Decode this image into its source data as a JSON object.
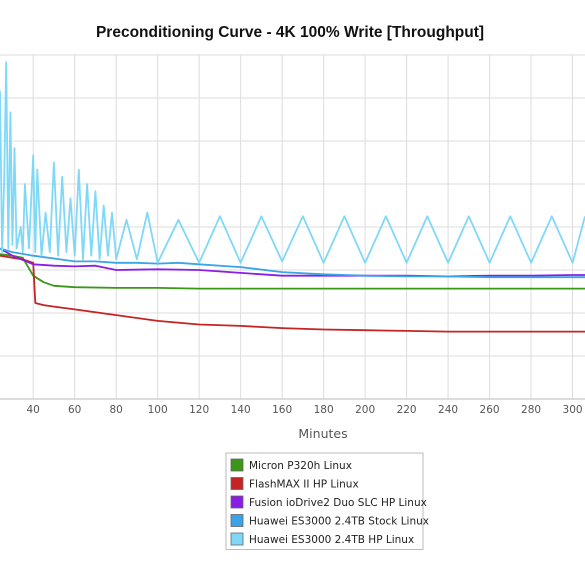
{
  "chart_data": {
    "type": "line",
    "title": "Preconditioning Curve - 4K 100% Write [Throughput]",
    "xlabel": "Minutes",
    "ylabel": "",
    "xlim": [
      24,
      306
    ],
    "ylim": [
      0,
      480
    ],
    "x_ticks": [
      40,
      60,
      80,
      100,
      120,
      140,
      160,
      180,
      200,
      220,
      240,
      260,
      280,
      300
    ],
    "grid": true,
    "legend_position": "bottom-center",
    "series": [
      {
        "name": "Micron P320h Linux",
        "color": "#3c9617",
        "x": [
          24,
          30,
          35,
          40,
          45,
          50,
          60,
          80,
          100,
          120,
          140,
          160,
          180,
          200,
          220,
          240,
          260,
          280,
          300,
          306
        ],
        "y": [
          202,
          200,
          197,
          172,
          163,
          158,
          156,
          155,
          155,
          154,
          154,
          154,
          154,
          154,
          154,
          154,
          154,
          154,
          154,
          154
        ]
      },
      {
        "name": "FlashMAX II HP Linux",
        "color": "#c52424",
        "x": [
          24,
          30,
          35,
          40,
          41,
          45,
          50,
          60,
          80,
          100,
          120,
          140,
          160,
          180,
          200,
          220,
          240,
          260,
          280,
          300,
          306
        ],
        "y": [
          200,
          197,
          195,
          190,
          134,
          131,
          129,
          125,
          117,
          109,
          104,
          102,
          99,
          97,
          96,
          95,
          94,
          94,
          94,
          94,
          94
        ]
      },
      {
        "name": "Fusion ioDrive2 Duo SLC HP Linux",
        "color": "#8a1ee6",
        "x": [
          24,
          30,
          40,
          50,
          60,
          70,
          80,
          100,
          120,
          140,
          160,
          180,
          200,
          220,
          240,
          260,
          280,
          300,
          306
        ],
        "y": [
          210,
          200,
          188,
          186,
          185,
          186,
          180,
          181,
          180,
          176,
          172,
          172,
          172,
          172,
          171,
          172,
          172,
          173,
          173
        ]
      },
      {
        "name": "Huawei ES3000 2.4TB Stock Linux",
        "color": "#3aa4e6",
        "x": [
          24,
          30,
          40,
          50,
          60,
          70,
          80,
          90,
          100,
          110,
          120,
          140,
          160,
          180,
          200,
          220,
          240,
          260,
          280,
          300,
          306
        ],
        "y": [
          210,
          205,
          200,
          196,
          192,
          192,
          190,
          190,
          189,
          190,
          188,
          184,
          177,
          174,
          172,
          171,
          171,
          170,
          170,
          170,
          170
        ]
      },
      {
        "name": "Huawei ES3000 2.4TB HP Linux",
        "color": "#7fd8f8",
        "x": [
          24,
          25,
          26,
          27,
          28,
          29,
          30,
          31,
          32,
          34,
          35,
          36,
          38,
          40,
          41,
          42,
          44,
          46,
          48,
          50,
          52,
          54,
          56,
          58,
          60,
          62,
          64,
          66,
          68,
          70,
          72,
          74,
          76,
          78,
          80,
          85,
          90,
          95,
          100,
          110,
          120,
          130,
          140,
          150,
          160,
          170,
          180,
          190,
          200,
          210,
          220,
          230,
          240,
          250,
          260,
          270,
          280,
          290,
          300,
          306
        ],
        "y": [
          430,
          205,
          300,
          470,
          210,
          400,
          215,
          350,
          210,
          240,
          205,
          300,
          210,
          340,
          205,
          320,
          200,
          260,
          205,
          330,
          200,
          310,
          205,
          280,
          200,
          320,
          195,
          300,
          200,
          290,
          195,
          270,
          200,
          260,
          195,
          250,
          195,
          260,
          190,
          250,
          190,
          255,
          190,
          255,
          192,
          255,
          190,
          255,
          190,
          255,
          190,
          255,
          190,
          255,
          190,
          255,
          190,
          255,
          190,
          255
        ]
      }
    ]
  }
}
